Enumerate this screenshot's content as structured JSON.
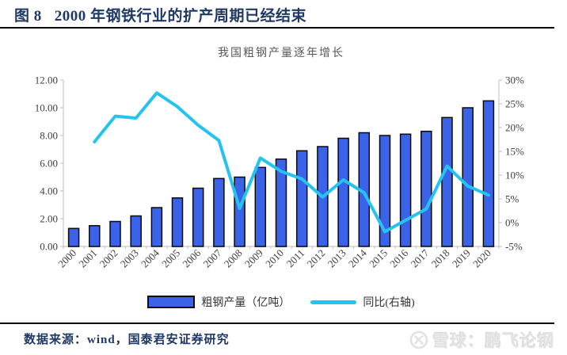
{
  "figure": {
    "label": "图 8",
    "title": "2000 年钢铁行业的扩产周期已经结束",
    "source": "数据来源：wind，国泰君安证券研究",
    "watermark": "雪球：鹏飞论钢"
  },
  "chart_data": {
    "type": "combo",
    "title": "我国粗钢产量逐年增长",
    "categories": [
      "2000",
      "2001",
      "2002",
      "2003",
      "2004",
      "2005",
      "2006",
      "2007",
      "2008",
      "2009",
      "2010",
      "2011",
      "2012",
      "2013",
      "2014",
      "2015",
      "2016",
      "2017",
      "2018",
      "2019",
      "2020"
    ],
    "series": [
      {
        "name": "粗钢产量（亿吨）",
        "type": "bar",
        "axis": "left",
        "color": "#3B63E8",
        "values": [
          1.3,
          1.5,
          1.8,
          2.2,
          2.8,
          3.5,
          4.2,
          4.9,
          5.0,
          5.7,
          6.3,
          6.9,
          7.2,
          7.8,
          8.2,
          8.0,
          8.1,
          8.3,
          9.3,
          10.0,
          10.5
        ]
      },
      {
        "name": "同比(右轴)",
        "type": "line",
        "axis": "right",
        "color": "#25C4F0",
        "values": [
          null,
          17.0,
          22.4,
          22.0,
          27.3,
          24.4,
          20.5,
          17.3,
          3.0,
          13.6,
          10.8,
          9.2,
          5.4,
          9.0,
          6.3,
          -1.9,
          0.5,
          2.9,
          11.9,
          7.7,
          5.8
        ]
      }
    ],
    "left_axis": {
      "min": 0,
      "max": 12,
      "step": 2,
      "tick_labels": [
        "0.00",
        "2.00",
        "4.00",
        "6.00",
        "8.00",
        "10.00",
        "12.00"
      ]
    },
    "right_axis": {
      "min": -5,
      "max": 30,
      "step": 5,
      "tick_labels": [
        "-5%",
        "0%",
        "5%",
        "10%",
        "15%",
        "20%",
        "25%",
        "30%"
      ]
    },
    "legend_position": "bottom",
    "grid": false
  },
  "colors": {
    "figure_title": "#1F3864",
    "chart_title": "#595959",
    "axis_text": "#404040",
    "axis_line": "#BFBFBF",
    "bar_outline": "#0A0A0A",
    "watermark": "#E2E2E2"
  }
}
